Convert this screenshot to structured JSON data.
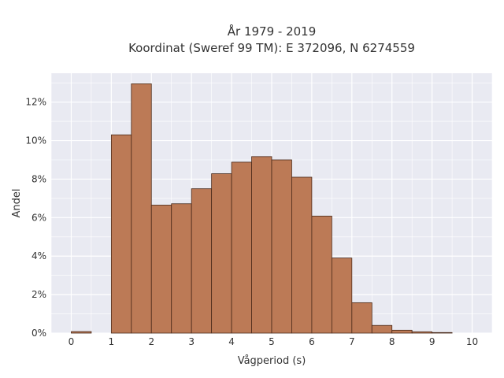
{
  "chart_data": {
    "type": "bar",
    "title_lines": [
      "År 1979 - 2019",
      "Koordinat (Sweref 99 TM): E 372096, N 6274559"
    ],
    "xlabel": "Vågperiod (s)",
    "ylabel": "Andel",
    "xlim": [
      -0.5,
      10.5
    ],
    "ylim": [
      0,
      13.5
    ],
    "x_ticks": [
      0,
      1,
      2,
      3,
      4,
      5,
      6,
      7,
      8,
      9,
      10
    ],
    "y_ticks": [
      0,
      2,
      4,
      6,
      8,
      10,
      12
    ],
    "y_tick_labels": [
      "0%",
      "2%",
      "4%",
      "6%",
      "8%",
      "10%",
      "12%"
    ],
    "bin_width": 0.5,
    "bins": [
      {
        "x0": 0.0,
        "value": 0.08
      },
      {
        "x0": 0.5,
        "value": 0.0
      },
      {
        "x0": 1.0,
        "value": 10.3
      },
      {
        "x0": 1.5,
        "value": 12.95
      },
      {
        "x0": 2.0,
        "value": 6.65
      },
      {
        "x0": 2.5,
        "value": 6.72
      },
      {
        "x0": 3.0,
        "value": 7.5
      },
      {
        "x0": 3.5,
        "value": 8.28
      },
      {
        "x0": 4.0,
        "value": 8.88
      },
      {
        "x0": 4.5,
        "value": 9.17
      },
      {
        "x0": 5.0,
        "value": 9.0
      },
      {
        "x0": 5.5,
        "value": 8.1
      },
      {
        "x0": 6.0,
        "value": 6.08
      },
      {
        "x0": 6.5,
        "value": 3.9
      },
      {
        "x0": 7.0,
        "value": 1.58
      },
      {
        "x0": 7.5,
        "value": 0.4
      },
      {
        "x0": 8.0,
        "value": 0.15
      },
      {
        "x0": 8.5,
        "value": 0.07
      },
      {
        "x0": 9.0,
        "value": 0.03
      }
    ],
    "grid": true,
    "colors": {
      "bar_fill": "#bc7a56",
      "bar_stroke": "#4a2a1a",
      "plot_bg": "#e9eaf2",
      "grid": "#ffffff"
    }
  }
}
